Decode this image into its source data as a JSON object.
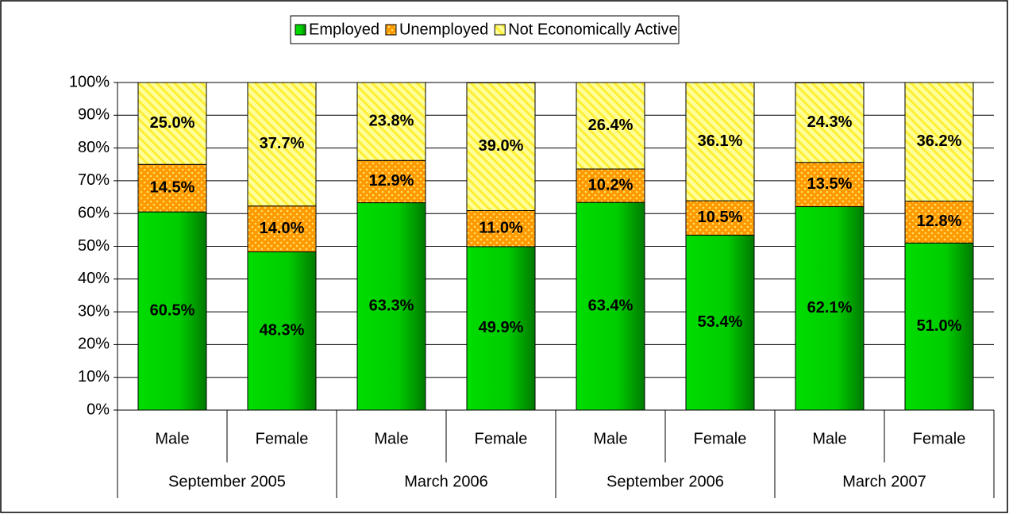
{
  "chart_data": {
    "type": "stacked-bar",
    "categories": [
      "Male",
      "Female",
      "Male",
      "Female",
      "Male",
      "Female",
      "Male",
      "Female"
    ],
    "groups": [
      "September 2005",
      "March 2006",
      "September 2006",
      "March 2007"
    ],
    "series": [
      {
        "name": "Employed",
        "color": "#00cc00",
        "values": [
          60.5,
          48.3,
          63.3,
          49.9,
          63.4,
          53.4,
          62.1,
          51.0
        ],
        "value_labels": [
          "60.5%",
          "48.3%",
          "63.3%",
          "49.9%",
          "63.4%",
          "53.4%",
          "62.1%",
          "51.0%"
        ]
      },
      {
        "name": "Unemployed",
        "color": "#ff9900",
        "values": [
          14.5,
          14.0,
          12.9,
          11.0,
          10.2,
          10.5,
          13.5,
          12.8
        ],
        "value_labels": [
          "14.5%",
          "14.0%",
          "12.9%",
          "11.0%",
          "10.2%",
          "10.5%",
          "13.5%",
          "12.8%"
        ]
      },
      {
        "name": "Not Economically Active",
        "color": "#ffff99",
        "values": [
          25.0,
          37.7,
          23.8,
          39.0,
          26.4,
          36.1,
          24.3,
          36.2
        ],
        "value_labels": [
          "25.0%",
          "37.7%",
          "23.8%",
          "39.0%",
          "26.4%",
          "36.1%",
          "24.3%",
          "36.2%"
        ]
      }
    ],
    "ylim": [
      0,
      100
    ],
    "yticks": [
      {
        "value": 0,
        "label": "0%"
      },
      {
        "value": 10,
        "label": "10%"
      },
      {
        "value": 20,
        "label": "20%"
      },
      {
        "value": 30,
        "label": "30%"
      },
      {
        "value": 40,
        "label": "40%"
      },
      {
        "value": 50,
        "label": "50%"
      },
      {
        "value": 60,
        "label": "60%"
      },
      {
        "value": 70,
        "label": "70%"
      },
      {
        "value": 80,
        "label": "80%"
      },
      {
        "value": 90,
        "label": "90%"
      },
      {
        "value": 100,
        "label": "100%"
      }
    ],
    "grid": true,
    "legend": "top"
  }
}
